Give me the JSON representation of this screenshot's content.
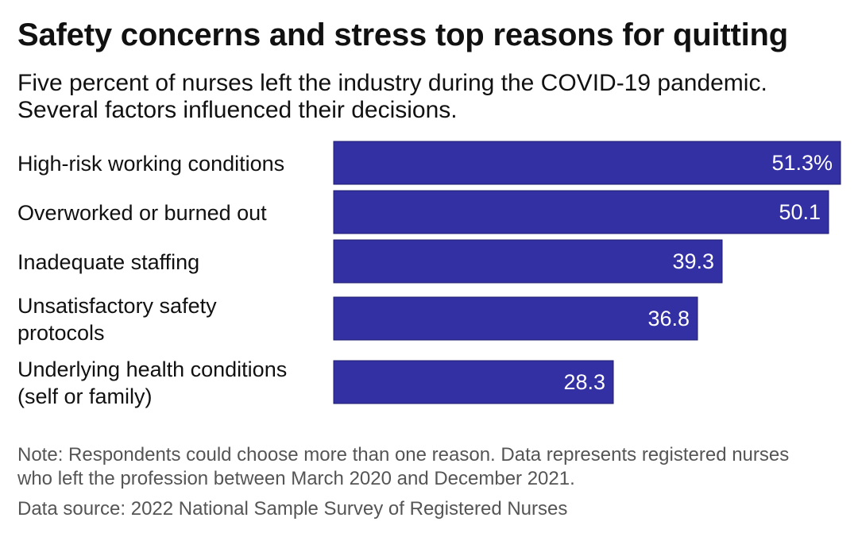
{
  "header": {
    "title": "Safety concerns and stress top reasons for quitting",
    "subtitle": "Five percent of nurses left the industry during the COVID-19 pandemic. Several factors influenced their decisions."
  },
  "footer": {
    "note": "Note: Respondents could choose more than one reason. Data represents registered nurses who left the profession between March 2020 and December 2021.",
    "source": "Data source: 2022 National Sample Survey of Registered Nurses"
  },
  "colors": {
    "bar": "#3330a4",
    "bar_label": "#ffffff",
    "text": "#111111",
    "muted": "#555555"
  },
  "chart_data": {
    "type": "bar",
    "orientation": "horizontal",
    "categories": [
      [
        "High-risk working conditions"
      ],
      [
        "Overworked or burned out"
      ],
      [
        "Inadequate staffing"
      ],
      [
        "Unsatisfactory safety",
        "protocols"
      ],
      [
        "Underlying health conditions",
        "(self or family)"
      ]
    ],
    "values": [
      51.3,
      50.1,
      39.3,
      36.8,
      28.3
    ],
    "value_labels": [
      "51.3%",
      "50.1",
      "39.3",
      "36.8",
      "28.3"
    ],
    "unit": "%",
    "xlim": [
      0,
      51.3
    ],
    "grid": false,
    "legend": "none"
  }
}
